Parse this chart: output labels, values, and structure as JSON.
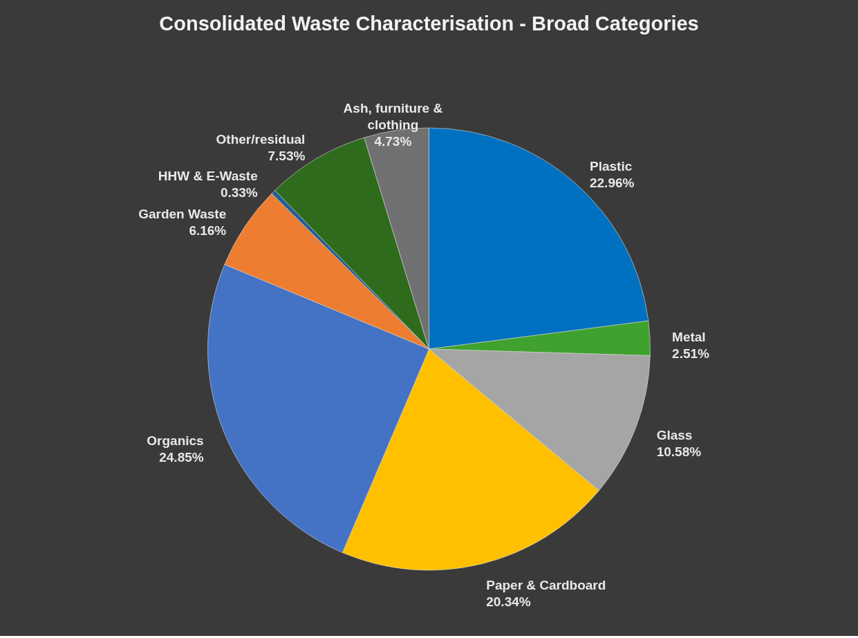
{
  "chart_data": {
    "type": "pie",
    "title": "Consolidated Waste Characterisation - Broad Categories",
    "categories": [
      "Plastic",
      "Metal",
      "Glass",
      "Paper & Cardboard",
      "Organics",
      "Garden Waste",
      "HHW & E-Waste",
      "Other/residual",
      "Ash, furniture & clothing"
    ],
    "values": [
      22.96,
      2.51,
      10.58,
      20.34,
      24.85,
      6.16,
      0.33,
      7.53,
      4.73
    ],
    "value_labels": [
      "22.96%",
      "2.51%",
      "10.58%",
      "20.34%",
      "24.85%",
      "6.16%",
      "0.33%",
      "7.53%",
      "4.73%"
    ],
    "colors": [
      "#0070c0",
      "#3fa22e",
      "#a5a5a5",
      "#ffc000",
      "#4472c4",
      "#ed7d31",
      "#255e91",
      "#2e6b1d",
      "#707070"
    ],
    "legend": false
  }
}
